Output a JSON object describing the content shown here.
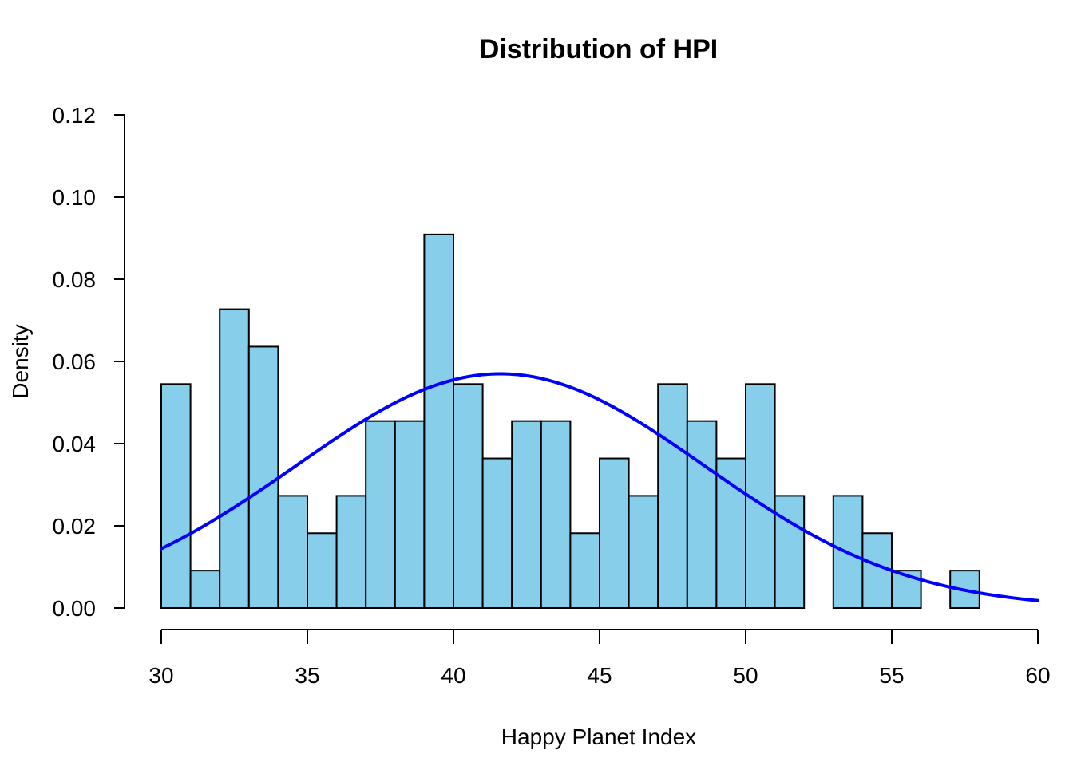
{
  "chart_data": {
    "type": "bar",
    "title": "Distribution of HPI",
    "xlabel": "Happy Planet Index",
    "ylabel": "Density",
    "xlim": [
      30,
      60
    ],
    "ylim": [
      0,
      0.12
    ],
    "x_ticks": [
      30,
      35,
      40,
      45,
      50,
      55,
      60
    ],
    "y_ticks": [
      "0.00",
      "0.02",
      "0.04",
      "0.06",
      "0.08",
      "0.10",
      "0.12"
    ],
    "bin_width": 1,
    "bin_starts": [
      30,
      31,
      32,
      33,
      34,
      35,
      36,
      37,
      38,
      39,
      40,
      41,
      42,
      43,
      44,
      45,
      46,
      47,
      48,
      49,
      50,
      51,
      52,
      53,
      54,
      55,
      56,
      57,
      58,
      59
    ],
    "series": [
      {
        "values": [
          0.0545,
          0.0091,
          0.0727,
          0.0636,
          0.0273,
          0.0182,
          0.0273,
          0.0455,
          0.0455,
          0.0909,
          0.0545,
          0.0364,
          0.0455,
          0.0455,
          0.0182,
          0.0364,
          0.0273,
          0.0545,
          0.0455,
          0.0364,
          0.0545,
          0.0273,
          0,
          0.0273,
          0.0182,
          0.0091,
          0,
          0.0091,
          0,
          0
        ],
        "color": "#87CEEB"
      }
    ],
    "density_curve": {
      "kind": "normal",
      "mean": 41.6,
      "sd": 7.0,
      "color": "#0000FF"
    },
    "grid": false
  }
}
